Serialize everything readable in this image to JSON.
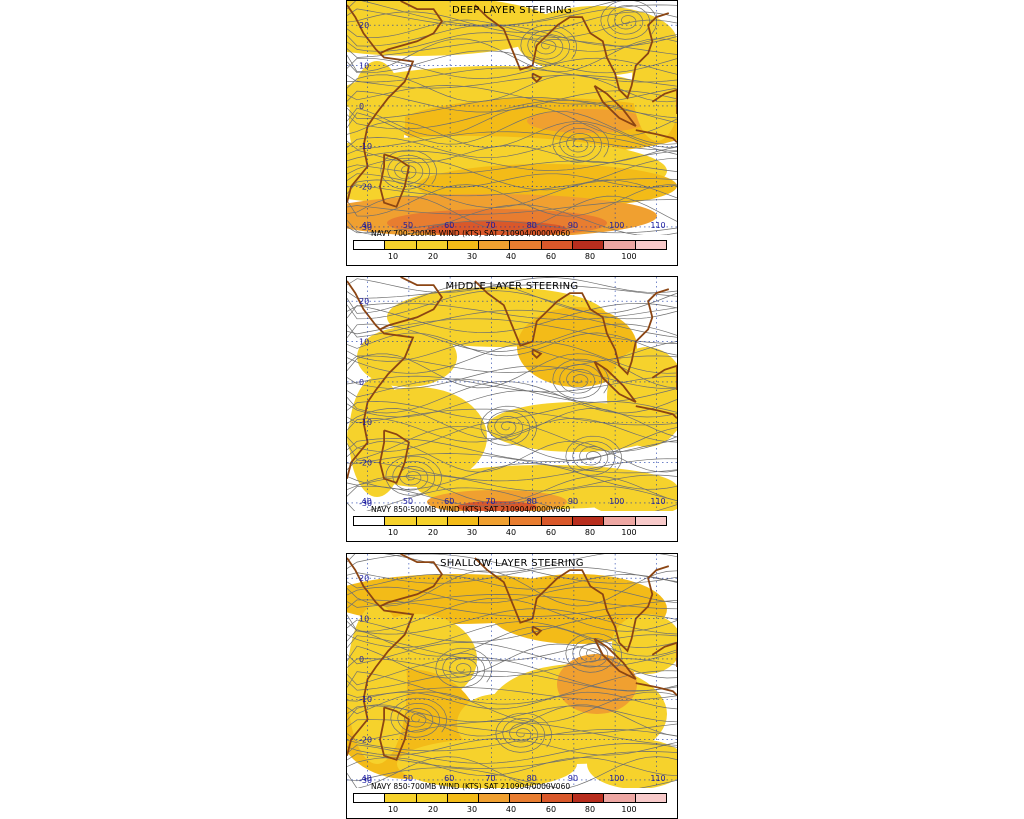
{
  "legend_levels": [
    "10",
    "20",
    "30",
    "40",
    "60",
    "80",
    "100"
  ],
  "colors": {
    "c1": "#f6d22c",
    "c2": "#f3bb18",
    "c3": "#f0a030",
    "c4": "#e87d30",
    "c5": "#d9582a",
    "c6": "#b82e1e",
    "c7": "#eea7a3",
    "c8": "#f8caca",
    "coast": "#8b4513",
    "streamline": "#707070",
    "grid": "#1a3aa8",
    "latlon_label": "#1a1aa0"
  },
  "map_labels": {
    "lat": [
      "20",
      "10",
      "0",
      "-10",
      "-20",
      "-30"
    ],
    "lon": [
      "40",
      "50",
      "60",
      "70",
      "80",
      "90",
      "100",
      "110"
    ]
  },
  "panels": [
    {
      "title": "DEEP LAYER STEERING",
      "footer": "NAVY 700-200MB WIND (KTS) SAT 210904/0000V060"
    },
    {
      "title": "MIDDLE LAYER STEERING",
      "footer": "NAVY 850-500MB WIND (KTS) SAT 210904/0000V060"
    },
    {
      "title": "SHALLOW LAYER STEERING",
      "footer": "NAVY 850-700MB WIND (KTS) SAT 210904/0000V060"
    }
  ]
}
